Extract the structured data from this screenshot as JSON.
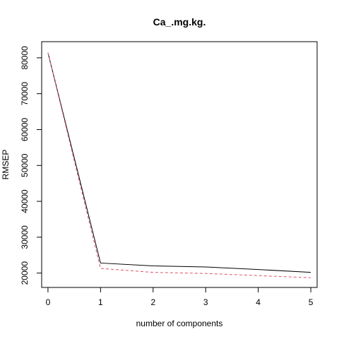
{
  "chart_data": {
    "type": "line",
    "title": "Ca_.mg.kg.",
    "xlabel": "number of components",
    "ylabel": "RMSEP",
    "xlim": [
      -0.12,
      5.12
    ],
    "ylim": [
      16000,
      84500
    ],
    "x_ticks": [
      0,
      1,
      2,
      3,
      4,
      5
    ],
    "x_tick_labels": [
      "0",
      "1",
      "2",
      "3",
      "4",
      "5"
    ],
    "y_ticks": [
      20000,
      30000,
      40000,
      50000,
      60000,
      70000,
      80000
    ],
    "y_tick_labels": [
      "20000",
      "30000",
      "40000",
      "50000",
      "60000",
      "70000",
      "80000"
    ],
    "grid": false,
    "x": [
      0,
      1,
      2,
      3,
      4,
      5
    ],
    "series": [
      {
        "values": [
          81400,
          22800,
          22000,
          21700,
          21000,
          20200
        ],
        "color": "#000000",
        "style": "solid"
      },
      {
        "values": [
          81400,
          21300,
          20200,
          19900,
          19300,
          18700
        ],
        "color": "#DF536B",
        "style": "dashed"
      }
    ]
  }
}
